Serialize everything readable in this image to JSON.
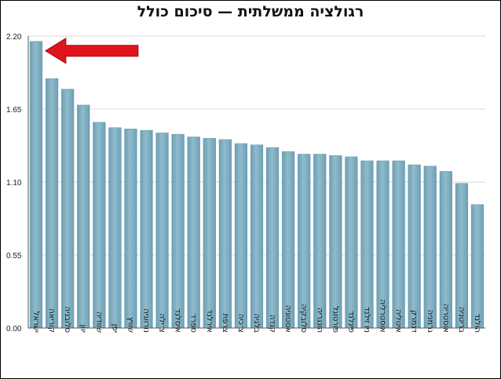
{
  "chart_data": {
    "type": "bar",
    "title": "רגולציה ממשלתית — סיכום כולל",
    "xlabel": "",
    "ylabel": "",
    "ylim": [
      0,
      2.2
    ],
    "yticks": [
      "0.00",
      "0.55",
      "1.10",
      "1.65",
      "2.20"
    ],
    "grid": true,
    "categories": [
      "ישראל",
      "קוריאה",
      "סלובניה",
      "יוון",
      "שוודיה",
      "יפן",
      "שוויץ",
      "נורווגיה",
      "צ׳ילה",
      "איסלנד",
      "ספרד",
      "אירלנד",
      "צרפת",
      "צ׳כיה",
      "בלגיה",
      "קנדה",
      "אסטוניה",
      "סלובקיה",
      "הונגריה",
      "פורטוגל",
      "פינלנד",
      "ניו זילנד",
      "אוסטרליה",
      "איטליה",
      "דנמרק",
      "גרמניה",
      "אוסטריה",
      "בריטניה",
      "הולנד"
    ],
    "values": [
      2.16,
      1.88,
      1.8,
      1.68,
      1.55,
      1.51,
      1.5,
      1.49,
      1.47,
      1.46,
      1.44,
      1.43,
      1.42,
      1.39,
      1.38,
      1.36,
      1.33,
      1.31,
      1.31,
      1.3,
      1.29,
      1.26,
      1.26,
      1.26,
      1.23,
      1.22,
      1.18,
      1.09,
      0.93
    ],
    "colors": {
      "bar": "#7fafc2",
      "bar_edge": "#5e93a8",
      "arrow": "#e0141c",
      "grid": "#d9d9d9",
      "axis": "#555555"
    },
    "annotations": [
      {
        "type": "arrow",
        "target_category": "ישראל",
        "color": "#e0141c"
      }
    ]
  }
}
